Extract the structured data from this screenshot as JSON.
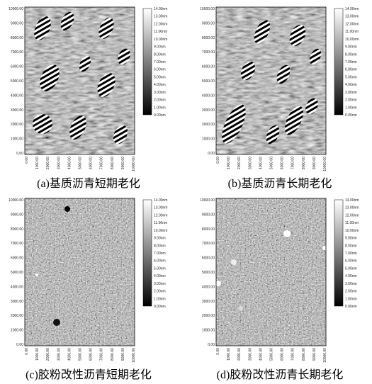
{
  "panels": [
    {
      "caption": "(a)基质沥青短期老化",
      "yticks": [
        "10000.00",
        "9000.00",
        "8000.00",
        "7000.00",
        "6000.00",
        "5000.00",
        "4000.00",
        "3000.00",
        "2000.00",
        "1000.00",
        "0.00"
      ],
      "xticks": [
        "0.00",
        "1000.00",
        "2000.00",
        "3000.00",
        "4000.00",
        "5000.00",
        "6000.00",
        "7000.00",
        "8000.00",
        "9000.00",
        "10000.00"
      ],
      "colorbar": [
        "14.00nm",
        "13.00nm",
        "12.00nm",
        "11.00nm",
        "10.00nm",
        "9.00nm",
        "8.00nm",
        "7.00nm",
        "6.00nm",
        "5.00nm",
        "4.00nm",
        "3.00nm",
        "2.00nm",
        "1.00nm",
        "0.00nm"
      ]
    },
    {
      "caption": "(b)基质沥青长期老化",
      "yticks": [
        "10000.00",
        "9000.00",
        "8000.00",
        "7000.00",
        "6000.00",
        "5000.00",
        "4000.00",
        "3000.00",
        "2000.00",
        "1000.00",
        "0.00"
      ],
      "xticks": [
        "0.00",
        "1000.00",
        "2000.00",
        "3000.00",
        "4000.00",
        "5000.00",
        "6000.00",
        "7000.00",
        "8000.00",
        "9000.00",
        "10000.00"
      ],
      "colorbar": [
        "14.00nm",
        "13.00nm",
        "12.00nm",
        "11.00nm",
        "10.00nm",
        "9.00nm",
        "8.00nm",
        "7.00nm",
        "6.00nm",
        "5.00nm",
        "4.00nm",
        "3.00nm",
        "2.00nm",
        "1.00nm",
        "0.00nm"
      ]
    },
    {
      "caption": "(c)胶粉改性沥青短期老化",
      "yticks": [
        "10000.00",
        "9000.00",
        "8000.00",
        "7000.00",
        "6000.00",
        "5000.00",
        "4000.00",
        "3000.00",
        "2000.00",
        "1000.00",
        "0.00"
      ],
      "xticks": [
        "0.00",
        "1000.00",
        "2000.00",
        "3000.00",
        "4000.00",
        "5000.00",
        "6000.00",
        "7000.00",
        "8000.00",
        "9000.00",
        "10000.00"
      ],
      "colorbar": [
        "14.00nm",
        "13.00nm",
        "12.00nm",
        "11.00nm",
        "10.00nm",
        "9.00nm",
        "8.00nm",
        "7.00nm",
        "6.00nm",
        "5.00nm",
        "4.00nm",
        "3.00nm",
        "2.00nm",
        "1.00nm",
        "0.00nm"
      ]
    },
    {
      "caption": "(d)胶粉改性沥青长期老化",
      "yticks": [
        "10000.00",
        "9000.00",
        "8000.00",
        "7000.00",
        "6000.00",
        "5000.00",
        "4000.00",
        "3000.00",
        "2000.00",
        "1000.00",
        "0.00"
      ],
      "xticks": [
        "0.00",
        "1000.00",
        "2000.00",
        "3000.00",
        "4000.00",
        "5000.00",
        "6000.00",
        "7000.00",
        "8000.00",
        "9000.00",
        "10000.00"
      ],
      "colorbar": [
        "14.00nm",
        "13.00nm",
        "12.00nm",
        "11.00nm",
        "10.00nm",
        "9.00nm",
        "8.00nm",
        "7.00nm",
        "6.00nm",
        "5.00nm",
        "4.00nm",
        "3.00nm",
        "2.00nm",
        "1.00nm",
        "0.00nm"
      ]
    }
  ]
}
